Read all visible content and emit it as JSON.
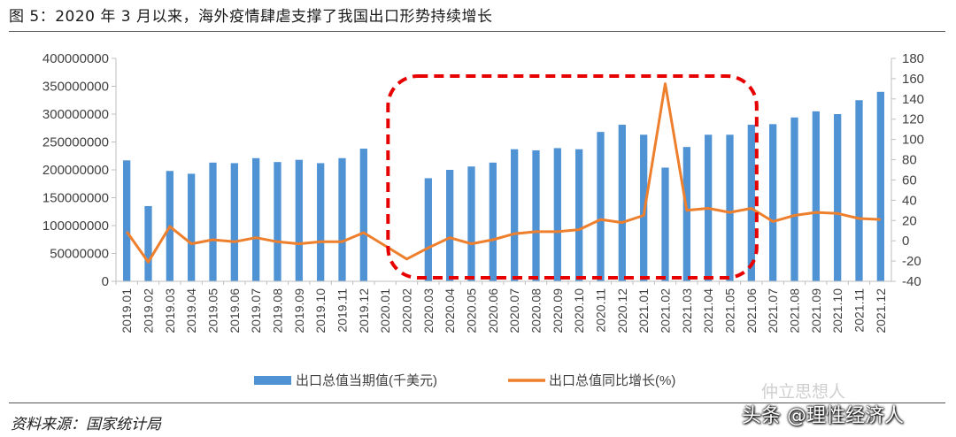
{
  "header": {
    "title": "图 5：2020 年 3 月以来，海外疫情肆虐支撑了我国出口形势持续增长"
  },
  "footer": {
    "source": "资料来源：国家统计局",
    "watermark": "仲立思想人",
    "credit": "头条 @理性经济人"
  },
  "colors": {
    "bar": "#4f93d4",
    "line": "#ee7f2d",
    "highlight": "#e60000",
    "axis": "#bfbfbf",
    "text": "#404040"
  },
  "chart_data": {
    "type": "bar",
    "categories": [
      "2019.01",
      "2019.02",
      "2019.03",
      "2019.04",
      "2019.05",
      "2019.06",
      "2019.07",
      "2019.08",
      "2019.09",
      "2019.10",
      "2019.11",
      "2019.12",
      "2020.01",
      "2020.02",
      "2020.03",
      "2020.04",
      "2020.05",
      "2020.06",
      "2020.07",
      "2020.08",
      "2020.09",
      "2020.10",
      "2020.11",
      "2020.12",
      "2021.01",
      "2021.02",
      "2021.03",
      "2021.04",
      "2021.05",
      "2021.06",
      "2021.07",
      "2021.08",
      "2021.09",
      "2021.10",
      "2021.11",
      "2021.12"
    ],
    "series": [
      {
        "name": "出口总值当期值(千美元)",
        "type": "bar",
        "axis": "left",
        "values": [
          217000000,
          135000000,
          198000000,
          193000000,
          213000000,
          212000000,
          221000000,
          214000000,
          218000000,
          212000000,
          221000000,
          238000000,
          null,
          null,
          185000000,
          200000000,
          206000000,
          213000000,
          237000000,
          235000000,
          239000000,
          237000000,
          268000000,
          281000000,
          263000000,
          204000000,
          241000000,
          263000000,
          263000000,
          281000000,
          282000000,
          294000000,
          305000000,
          300000000,
          325000000,
          340000000
        ]
      },
      {
        "name": "出口总值同比增长(%)",
        "type": "line",
        "axis": "right",
        "values": [
          9,
          -21,
          14,
          -3,
          1,
          -1,
          3,
          -1,
          -3,
          -1,
          -1,
          8,
          -5,
          -18,
          -7,
          3,
          -3,
          1,
          7,
          9,
          9,
          11,
          21,
          18,
          25,
          155,
          30,
          32,
          28,
          32,
          19,
          25,
          28,
          27,
          22,
          21
        ]
      }
    ],
    "y_left": {
      "min": 0,
      "max": 400000000,
      "step": 50000000,
      "ticks": [
        "0",
        "50000000",
        "100000000",
        "150000000",
        "200000000",
        "250000000",
        "300000000",
        "350000000",
        "400000000"
      ]
    },
    "y_right": {
      "min": -40,
      "max": 180,
      "step": 20,
      "ticks": [
        "-40",
        "-20",
        "0",
        "20",
        "40",
        "60",
        "80",
        "100",
        "120",
        "140",
        "160",
        "180"
      ]
    },
    "grid": false,
    "legend": "bottom",
    "annotation": {
      "type": "dashed-rounded-rect",
      "from_category": "2020.02",
      "to_category": "2021.06"
    }
  }
}
